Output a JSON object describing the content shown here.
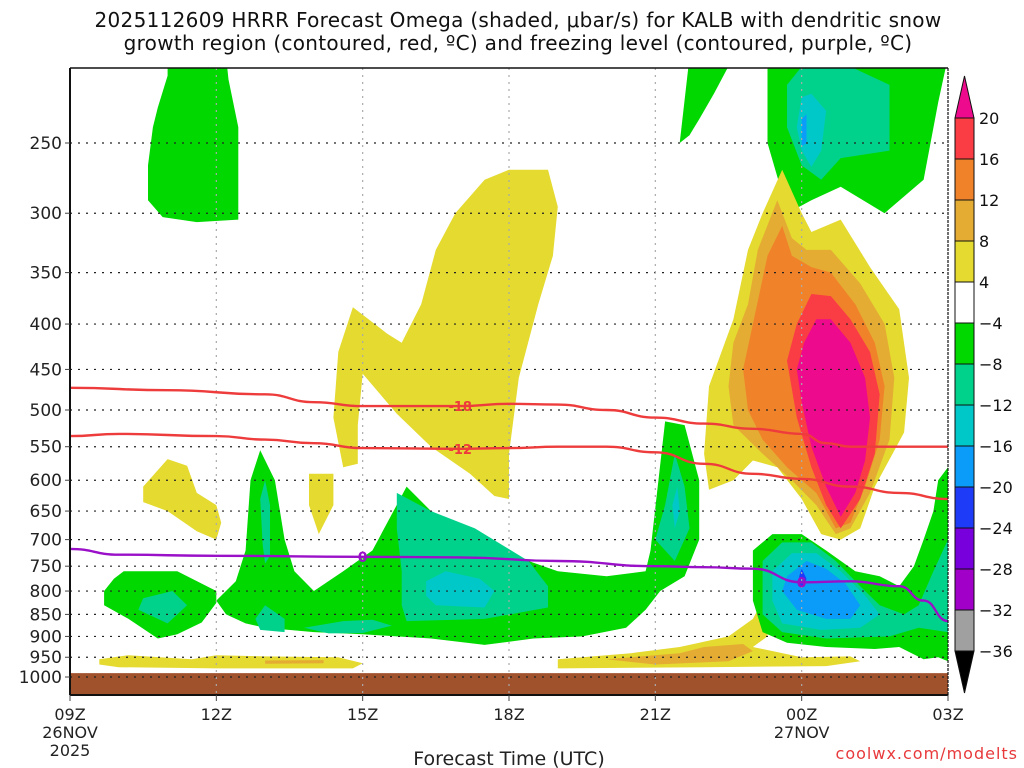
{
  "title": {
    "line1": "2025112609 HRRR Forecast Omega (shaded, μbar/s) for KALB with dendritic snow",
    "line2": "growth region (contoured, red, ºC) and freezing level (contoured, purple, ºC)"
  },
  "footer": {
    "credit": "coolwx.com/modelts"
  },
  "chart_data": {
    "type": "heatmap",
    "subtype": "time-height cross section (filled contours with line contours)",
    "title": "2025112609 HRRR Forecast Omega (shaded, μbar/s) for KALB with dendritic snow growth region (contoured, red, ºC) and freezing level (contoured, purple, ºC)",
    "xlabel": "Forecast Time (UTC)",
    "ylabel": "",
    "x_ticks": [
      {
        "hour": 0,
        "label": "09Z",
        "sub": [
          "26NOV",
          "2025"
        ]
      },
      {
        "hour": 3,
        "label": "12Z",
        "sub": []
      },
      {
        "hour": 6,
        "label": "15Z",
        "sub": []
      },
      {
        "hour": 9,
        "label": "18Z",
        "sub": []
      },
      {
        "hour": 12,
        "label": "21Z",
        "sub": []
      },
      {
        "hour": 15,
        "label": "00Z",
        "sub": [
          "27NOV"
        ]
      },
      {
        "hour": 18,
        "label": "03Z",
        "sub": []
      }
    ],
    "xlim_hours": [
      0,
      18
    ],
    "y_ticks": [
      250,
      300,
      350,
      400,
      450,
      500,
      550,
      600,
      650,
      700,
      750,
      800,
      850,
      900,
      950,
      1000
    ],
    "ylim_hpa": [
      200,
      1025
    ],
    "y_scale": "log-pressure (inverted)",
    "grid": "dotted, both axes",
    "surface": {
      "label": "below ground",
      "top_hpa": 990,
      "color": "#a0522d"
    },
    "colorbar": {
      "placement": "right",
      "label_units": "μbar/s",
      "levels": [
        20,
        16,
        12,
        8,
        4,
        -4,
        -8,
        -12,
        -16,
        -20,
        -24,
        -28,
        -32,
        -36
      ],
      "colors": {
        "above_20": "#ee0a8c",
        "16_20": "#fa3c44",
        "12_16": "#f0832a",
        "8_12": "#e4ac32",
        "4_8": "#e4da30",
        "-4_4": "#ffffff",
        "-8_-4": "#00d800",
        "-12_-8": "#00d28c",
        "-16_-12": "#00c8c8",
        "-20_-16": "#0a9cf8",
        "-24_-20": "#1e3cf8",
        "-28_-24": "#7800dc",
        "-32_-28": "#a000c8",
        "-36_-32": "#a0a0a0",
        "below_-36": "#000000"
      },
      "ordered_colors": [
        "#fa3c44",
        "#f0832a",
        "#e4ac32",
        "#e4da30",
        "#ffffff",
        "#00d800",
        "#00d28c",
        "#00c8c8",
        "#0a9cf8",
        "#1e3cf8",
        "#7800dc",
        "#a000c8",
        "#a0a0a0"
      ],
      "cap_top_color": "#ee0a8c",
      "cap_bottom_color": "#000000"
    },
    "shaded_regions": [
      {
        "name": "upper-left ascent",
        "value_band": "-8_-4",
        "hours": [
          1.6,
          4.1
        ],
        "hpa": [
          200,
          305
        ]
      },
      {
        "name": "upper yellow descent plume",
        "value_band": "4_8",
        "hours": [
          5.8,
          8.8
        ],
        "hpa": [
          270,
          640
        ]
      },
      {
        "name": "small yellow left",
        "value_band": "4_8",
        "hours": [
          1.5,
          3.0
        ],
        "hpa": [
          570,
          690
        ]
      },
      {
        "name": "low-level ascent left",
        "value_band": "-8_-4",
        "hours": [
          0.6,
          3.0
        ],
        "hpa": [
          770,
          880
        ],
        "core_band": "-12_-8"
      },
      {
        "name": "low-level ascent center",
        "value_band": "-8_-4",
        "hours": [
          3.0,
          12.6
        ],
        "hpa": [
          550,
          920
        ],
        "core_band": "-16_-12"
      },
      {
        "name": "21Z column ascent",
        "value_band": "-8_-4",
        "hours": [
          11.6,
          13.0
        ],
        "hpa": [
          510,
          800
        ],
        "core_band": "-12_-8"
      },
      {
        "name": "upper-right ascent",
        "value_band": "-8_-4",
        "hours": [
          14.7,
          18.0
        ],
        "hpa": [
          200,
          300
        ],
        "core_band": "-20_-16"
      },
      {
        "name": "strong descent max",
        "value_band": "above_20",
        "hours": [
          13.0,
          17.2
        ],
        "hpa": [
          220,
          700
        ],
        "peak_near_hours": 16.0,
        "peak_near_hpa": 450
      },
      {
        "name": "low-level ascent right",
        "value_band": "-8_-4",
        "hours": [
          14.0,
          18.0
        ],
        "hpa": [
          690,
          950
        ],
        "core_band": "-20_-16"
      },
      {
        "name": "near-surface descent",
        "value_band": "8_12",
        "hours": [
          0.6,
          16.0
        ],
        "hpa": [
          930,
          980
        ]
      }
    ],
    "line_contours": [
      {
        "name": "dendritic growth -18C",
        "color": "#ee3b3b",
        "label": "-18",
        "points_hours_hpa": [
          [
            0,
            472
          ],
          [
            2,
            475
          ],
          [
            4,
            480
          ],
          [
            5,
            490
          ],
          [
            6,
            495
          ],
          [
            8,
            495
          ],
          [
            9,
            492
          ],
          [
            10,
            493
          ],
          [
            11,
            500
          ],
          [
            12,
            510
          ],
          [
            13,
            518
          ],
          [
            14,
            525
          ],
          [
            15,
            532
          ],
          [
            15.5,
            545
          ],
          [
            16,
            550
          ],
          [
            17,
            550
          ],
          [
            18,
            550
          ]
        ]
      },
      {
        "name": "dendritic growth -12C",
        "color": "#ee3b3b",
        "label": "-12",
        "points_hours_hpa": [
          [
            0,
            535
          ],
          [
            1,
            532
          ],
          [
            3,
            535
          ],
          [
            4,
            540
          ],
          [
            5,
            545
          ],
          [
            6,
            552
          ],
          [
            8,
            553
          ],
          [
            9,
            552
          ],
          [
            10,
            550
          ],
          [
            11,
            550
          ],
          [
            12,
            558
          ],
          [
            13,
            575
          ],
          [
            14,
            590
          ],
          [
            15,
            598
          ],
          [
            16,
            610
          ],
          [
            17,
            620
          ],
          [
            18,
            630
          ]
        ]
      },
      {
        "name": "freezing level 0C",
        "color": "#9a10c8",
        "label": "0",
        "points_hours_hpa": [
          [
            0,
            717
          ],
          [
            1,
            728
          ],
          [
            3,
            730
          ],
          [
            6,
            732
          ],
          [
            8,
            733
          ],
          [
            10,
            740
          ],
          [
            12,
            750
          ],
          [
            13,
            752
          ],
          [
            14,
            755
          ],
          [
            15,
            782
          ],
          [
            16,
            780
          ],
          [
            17,
            790
          ],
          [
            17.5,
            820
          ],
          [
            18,
            865
          ]
        ]
      }
    ]
  }
}
